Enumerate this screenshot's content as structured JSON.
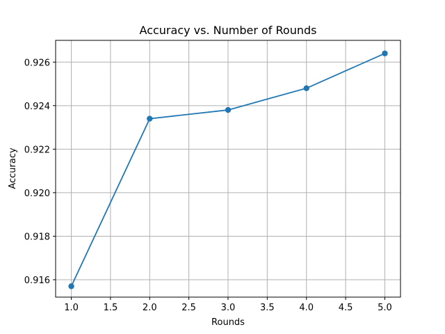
{
  "chart_data": {
    "type": "line",
    "title": "Accuracy vs. Number of Rounds",
    "xlabel": "Rounds",
    "ylabel": "Accuracy",
    "xlim": [
      0.8,
      5.2
    ],
    "ylim": [
      0.9152,
      0.927
    ],
    "xticks": [
      1.0,
      1.5,
      2.0,
      2.5,
      3.0,
      3.5,
      4.0,
      4.5,
      5.0
    ],
    "xtick_labels": [
      "1.0",
      "1.5",
      "2.0",
      "2.5",
      "3.0",
      "3.5",
      "4.0",
      "4.5",
      "5.0"
    ],
    "yticks": [
      0.916,
      0.918,
      0.92,
      0.922,
      0.924,
      0.926
    ],
    "ytick_labels": [
      "0.916",
      "0.918",
      "0.920",
      "0.922",
      "0.924",
      "0.926"
    ],
    "grid": true,
    "series": [
      {
        "x": [
          1,
          2,
          3,
          4,
          5
        ],
        "values": [
          0.9157,
          0.9234,
          0.9238,
          0.9248,
          0.9264
        ],
        "color": "#1f77b4",
        "marker": "circle"
      }
    ]
  }
}
